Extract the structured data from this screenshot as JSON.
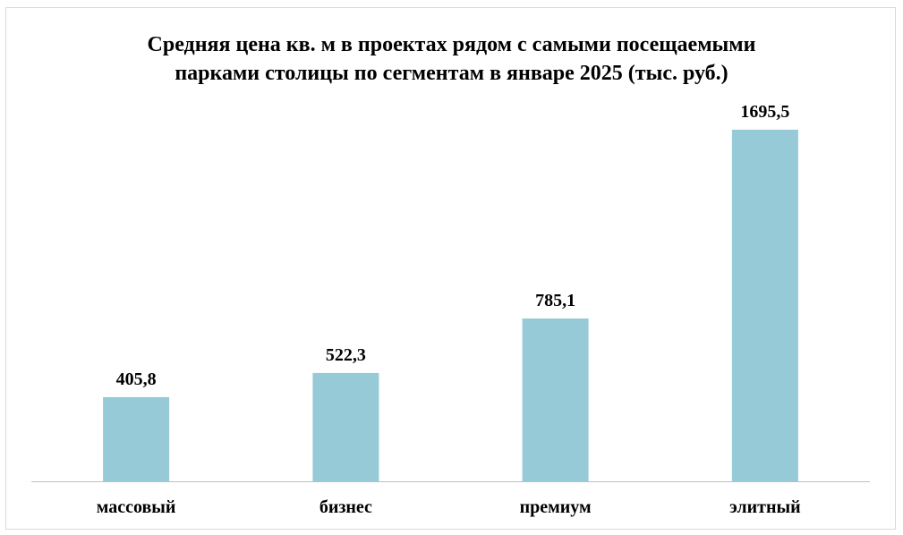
{
  "chart_data": {
    "type": "bar",
    "title_lines": [
      "Средняя цена кв. м в проектах рядом с самыми посещаемыми",
      "парками столицы по сегментам в январе 2025 (тыс. руб.)"
    ],
    "categories": [
      "массовый",
      "бизнес",
      "премиум",
      "элитный"
    ],
    "values": [
      405.8,
      522.3,
      785.1,
      1695.5
    ],
    "value_labels": [
      "405,8",
      "522,3",
      "785,1",
      "1695,5"
    ],
    "xlabel": "",
    "ylabel": "",
    "ylim": [
      0,
      1900
    ],
    "grid": false,
    "legend": "none",
    "bar_color": "#96cad6",
    "axis_color": "#bfbfbf"
  }
}
